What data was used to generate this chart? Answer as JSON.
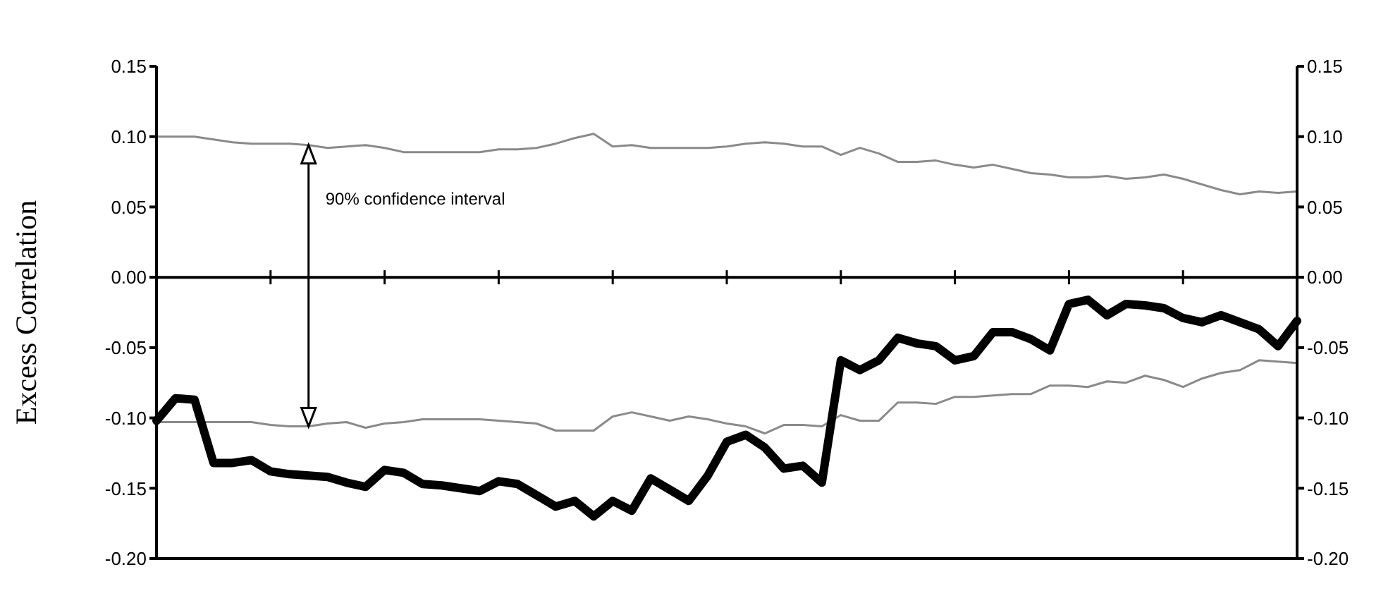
{
  "chart_data": {
    "type": "line",
    "ylabel": "Excess Correlation",
    "categories": [
      null,
      null,
      null,
      null,
      null,
      null,
      null,
      null,
      null,
      null,
      null,
      null,
      null,
      null,
      null,
      null,
      null,
      null,
      null,
      null,
      null,
      null,
      null,
      null,
      null,
      null,
      null,
      null,
      null,
      null,
      null,
      null,
      null,
      null,
      null,
      null,
      null,
      null,
      null,
      null,
      null,
      null,
      null,
      null,
      null,
      null,
      null,
      null,
      null,
      null,
      null,
      null,
      null,
      null,
      null,
      null,
      null,
      null,
      null,
      null,
      null
    ],
    "ylim": [
      -0.2,
      0.15
    ],
    "yticks": [
      {
        "value": -0.2,
        "label": "-0.20"
      },
      {
        "value": -0.15,
        "label": "-0.15"
      },
      {
        "value": -0.1,
        "label": "-0.10"
      },
      {
        "value": -0.05,
        "label": "-0.05"
      },
      {
        "value": 0,
        "label": "0.00"
      },
      {
        "value": 0.05,
        "label": "0.05"
      },
      {
        "value": 0.1,
        "label": "0.10"
      },
      {
        "value": 0.15,
        "label": "0.15"
      }
    ],
    "y2lim": [
      -0.2,
      0.15
    ],
    "y2ticks": [
      {
        "value": -0.2,
        "label": "-0.20"
      },
      {
        "value": -0.15,
        "label": "-0.15"
      },
      {
        "value": -0.1,
        "label": "-0.10"
      },
      {
        "value": -0.05,
        "label": "-0.05"
      },
      {
        "value": 0,
        "label": "0.00"
      },
      {
        "value": 0.05,
        "label": "0.05"
      },
      {
        "value": 0.1,
        "label": "0.10"
      },
      {
        "value": 0.15,
        "label": "0.15"
      }
    ],
    "grid": false,
    "legend": false,
    "marker": "none",
    "line_style": "solid",
    "ref_lines": [
      {
        "axis": "y",
        "value": 0,
        "color": "#000000"
      }
    ],
    "annotations": [
      "90% confidence interval"
    ],
    "series": [
      {
        "color": "#8a8a8a",
        "values": [
          0.1,
          0.1,
          0.1,
          0.098,
          0.096,
          0.095,
          0.095,
          0.095,
          0.094,
          0.092,
          0.093,
          0.094,
          0.092,
          0.089,
          0.089,
          0.089,
          0.089,
          0.089,
          0.091,
          0.091,
          0.092,
          0.095,
          0.099,
          0.102,
          0.093,
          0.094,
          0.092,
          0.092,
          0.092,
          0.092,
          0.093,
          0.095,
          0.096,
          0.095,
          0.093,
          0.093,
          0.087,
          0.092,
          0.088,
          0.082,
          0.082,
          0.083,
          0.08,
          0.078,
          0.08,
          0.077,
          0.074,
          0.073,
          0.071,
          0.071,
          0.072,
          0.07,
          0.071,
          0.073,
          0.07,
          0.066,
          0.062,
          0.059,
          0.061,
          0.06,
          0.061
        ]
      },
      {
        "color": "#8a8a8a",
        "values": [
          -0.103,
          -0.103,
          -0.103,
          -0.103,
          -0.103,
          -0.103,
          -0.105,
          -0.106,
          -0.106,
          -0.104,
          -0.103,
          -0.107,
          -0.104,
          -0.103,
          -0.101,
          -0.101,
          -0.101,
          -0.101,
          -0.102,
          -0.103,
          -0.104,
          -0.109,
          -0.109,
          -0.109,
          -0.099,
          -0.096,
          -0.099,
          -0.102,
          -0.099,
          -0.101,
          -0.104,
          -0.106,
          -0.111,
          -0.105,
          -0.105,
          -0.106,
          -0.098,
          -0.102,
          -0.102,
          -0.089,
          -0.089,
          -0.09,
          -0.085,
          -0.085,
          -0.084,
          -0.083,
          -0.083,
          -0.077,
          -0.077,
          -0.078,
          -0.074,
          -0.075,
          -0.07,
          -0.073,
          -0.078,
          -0.072,
          -0.068,
          -0.066,
          -0.059,
          -0.06,
          -0.061
        ]
      },
      {
        "color": "#000000",
        "values": [
          -0.102,
          -0.086,
          -0.087,
          -0.132,
          -0.132,
          -0.13,
          -0.138,
          -0.14,
          -0.141,
          -0.142,
          -0.146,
          -0.149,
          -0.137,
          -0.139,
          -0.147,
          -0.148,
          -0.15,
          -0.152,
          -0.145,
          -0.147,
          -0.155,
          -0.163,
          -0.159,
          -0.17,
          -0.159,
          -0.166,
          -0.143,
          -0.151,
          -0.159,
          -0.141,
          -0.117,
          -0.112,
          -0.121,
          -0.136,
          -0.134,
          -0.146,
          -0.059,
          -0.066,
          -0.059,
          -0.043,
          -0.047,
          -0.049,
          -0.059,
          -0.056,
          -0.039,
          -0.039,
          -0.044,
          -0.052,
          -0.019,
          -0.016,
          -0.027,
          -0.019,
          -0.02,
          -0.022,
          -0.029,
          -0.032,
          -0.027,
          -0.032,
          -0.037,
          -0.049,
          -0.031
        ]
      }
    ]
  }
}
